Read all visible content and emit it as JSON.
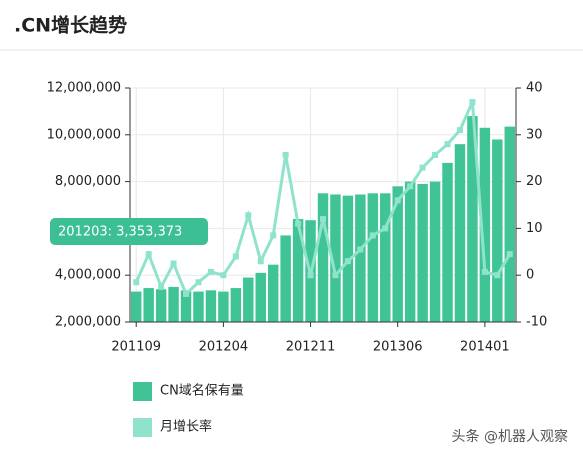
{
  "chart_data": {
    "type": "bar",
    "title": ".CN增长趋势",
    "categories": [
      "201109",
      null,
      null,
      null,
      null,
      null,
      null,
      "201204",
      null,
      null,
      null,
      null,
      null,
      null,
      "201211",
      null,
      null,
      null,
      null,
      null,
      null,
      "201306",
      null,
      null,
      null,
      null,
      null,
      null,
      "201401",
      null,
      null
    ],
    "series": [
      {
        "name": "CN域名保有量",
        "type": "bar",
        "color": "#40c496",
        "axis": "y",
        "values": [
          3300000,
          3450000,
          3400000,
          3500000,
          3350000,
          3300000,
          3353373,
          3300000,
          3450000,
          3900000,
          4100000,
          4450000,
          5700000,
          6400000,
          6350000,
          7500000,
          7450000,
          7400000,
          7450000,
          7500000,
          7500000,
          7800000,
          8000000,
          7900000,
          8000000,
          8800000,
          9600000,
          10800000,
          10300000,
          9800000,
          10350000
        ]
      },
      {
        "name": "月增长率",
        "type": "line",
        "color": "#8fe3cc",
        "axis": "y2",
        "values": [
          -1.5,
          4.5,
          -2.5,
          2.5,
          -4,
          -1.5,
          0.7,
          0,
          4,
          12.8,
          3,
          8.5,
          25.7,
          11,
          0,
          12,
          0,
          3,
          5.5,
          8.5,
          10,
          16,
          19,
          23,
          25.7,
          28,
          31,
          37,
          0.7,
          0,
          4.5
        ]
      }
    ],
    "ylim": [
      2000000,
      12000000
    ],
    "yticks": [
      {
        "value": 2000000,
        "label": "2,000,000"
      },
      {
        "value": 4000000,
        "label": "4,000,000"
      },
      {
        "value": 6000000,
        "label": "6,000,000"
      },
      {
        "value": 8000000,
        "label": "8,000,000"
      },
      {
        "value": 10000000,
        "label": "10,000,000"
      },
      {
        "value": 12000000,
        "label": "12,000,000"
      }
    ],
    "y2lim": [
      -10,
      40
    ],
    "y2ticks": [
      -10,
      0,
      10,
      20,
      30,
      40
    ],
    "grid": true,
    "tooltip": "201203: 3,353,373",
    "watermark": "头条 @机器人观察"
  }
}
